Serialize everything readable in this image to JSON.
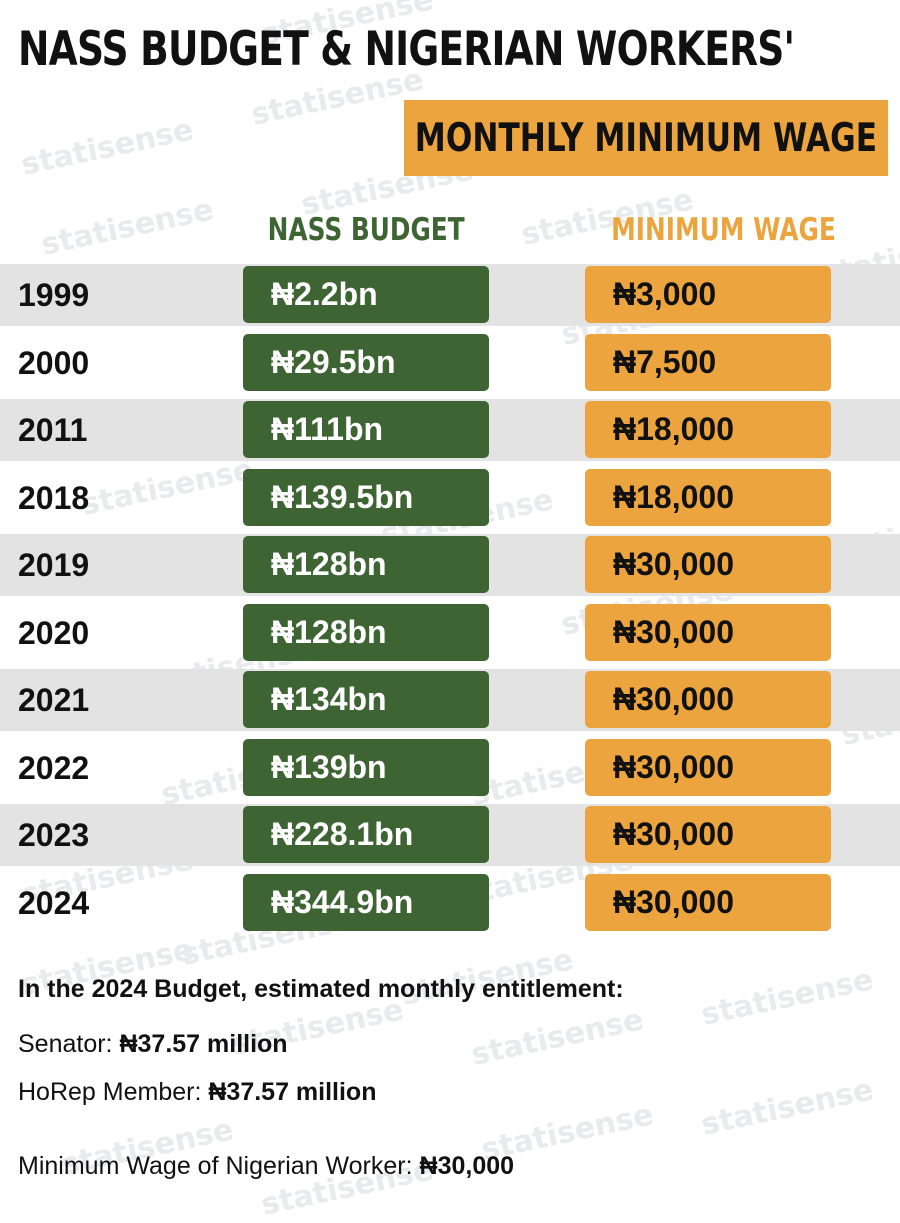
{
  "title": "NASS BUDGET & NIGERIAN WORKERS'",
  "subtitle": "MONTHLY MINIMUM WAGE",
  "watermark_text": "statisense",
  "colors": {
    "nass_green": "#3e6434",
    "wage_orange": "#eca53e",
    "row_shade": "#e3e3e3"
  },
  "chart_data": {
    "type": "table",
    "title": "NASS BUDGET & NIGERIAN WORKERS' MONTHLY MINIMUM WAGE",
    "columns": [
      "NASS BUDGET",
      "MINIMUM WAGE"
    ],
    "rows": [
      {
        "year": "1999",
        "nass": "₦2.2bn",
        "wage": "₦3,000"
      },
      {
        "year": "2000",
        "nass": "₦29.5bn",
        "wage": "₦7,500"
      },
      {
        "year": "2011",
        "nass": "₦111bn",
        "wage": "₦18,000"
      },
      {
        "year": "2018",
        "nass": "₦139.5bn",
        "wage": "₦18,000"
      },
      {
        "year": "2019",
        "nass": "₦128bn",
        "wage": "₦30,000"
      },
      {
        "year": "2020",
        "nass": "₦128bn",
        "wage": "₦30,000"
      },
      {
        "year": "2021",
        "nass": "₦134bn",
        "wage": "₦30,000"
      },
      {
        "year": "2022",
        "nass": "₦139bn",
        "wage": "₦30,000"
      },
      {
        "year": "2023",
        "nass": "₦228.1bn",
        "wage": "₦30,000"
      },
      {
        "year": "2024",
        "nass": "₦344.9bn",
        "wage": "₦30,000"
      }
    ]
  },
  "footer": {
    "heading": "In the 2024 Budget, estimated monthly entitlement:",
    "senator_label": "Senator: ",
    "senator_value": "₦37.57 million",
    "horep_label": "HoRep Member: ",
    "horep_value": "₦37.57 million",
    "min_wage_label": "Minimum Wage of Nigerian Worker: ",
    "min_wage_value": "₦30,000"
  }
}
